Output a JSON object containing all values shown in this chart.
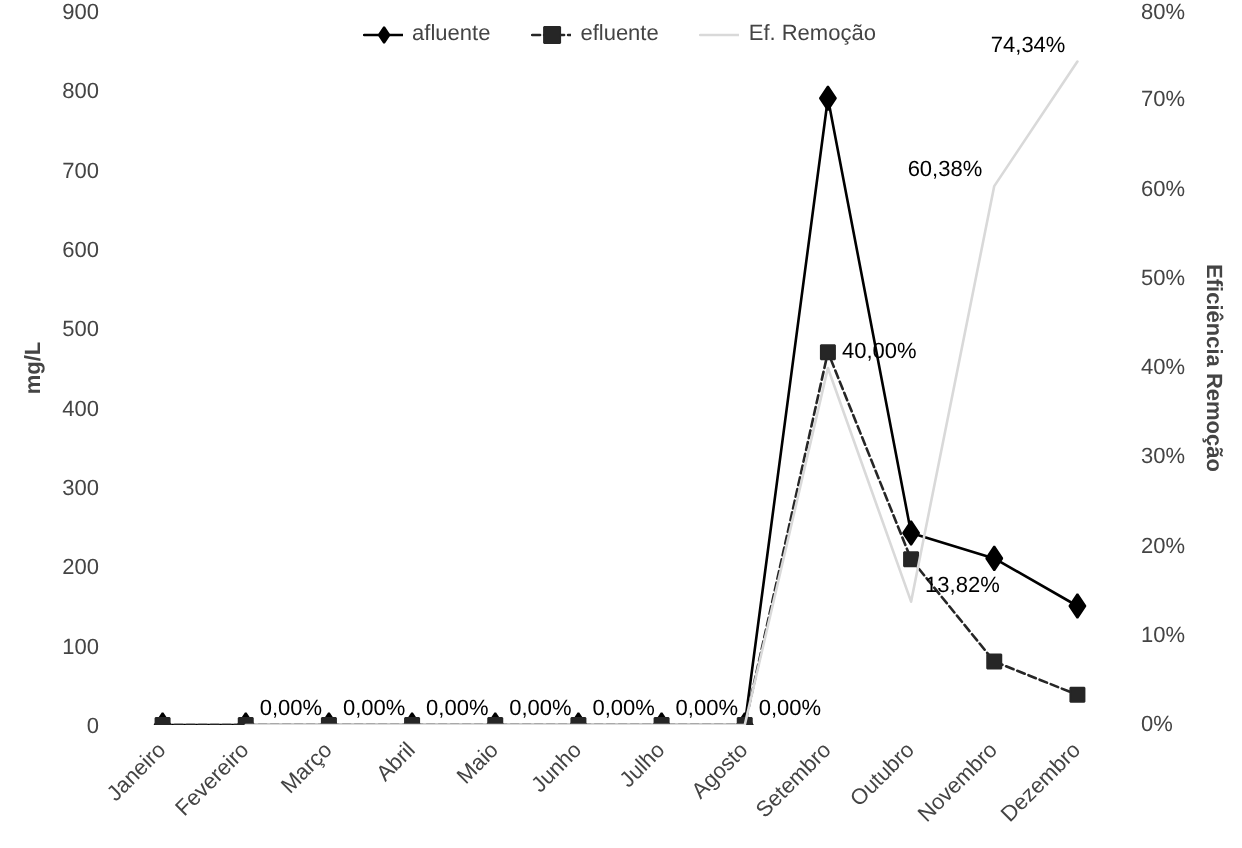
{
  "chart_data": {
    "type": "line",
    "categories": [
      "Janeiro",
      "Fevereiro",
      "Março",
      "Abril",
      "Maio",
      "Junho",
      "Julho",
      "Agosto",
      "Setembro",
      "Outubro",
      "Novembro",
      "Dezembro"
    ],
    "ylabel": "mg/L",
    "y2label": "Eficiência Remoção",
    "ylim": [
      0,
      900
    ],
    "yticks": [
      0,
      100,
      200,
      300,
      400,
      500,
      600,
      700,
      800,
      900
    ],
    "y2lim": [
      0,
      0.8
    ],
    "y2ticks": [
      {
        "value": 0,
        "label": "0%"
      },
      {
        "value": 0.1,
        "label": "10%"
      },
      {
        "value": 0.2,
        "label": "20%"
      },
      {
        "value": 0.3,
        "label": "30%"
      },
      {
        "value": 0.4,
        "label": "40%"
      },
      {
        "value": 0.5,
        "label": "50%"
      },
      {
        "value": 0.6,
        "label": "60%"
      },
      {
        "value": 0.7,
        "label": "70%"
      },
      {
        "value": 0.8,
        "label": "80%"
      }
    ],
    "grid": false,
    "legend": "top",
    "series": [
      {
        "name": "afluente",
        "color": "#000000",
        "marker": "diamond",
        "line_style": "solid",
        "values": [
          0,
          0,
          0,
          0,
          0,
          0,
          0,
          0,
          790,
          242,
          210,
          150
        ]
      },
      {
        "name": "efluente",
        "color": "#262626",
        "marker": "square",
        "line_style": "dashed",
        "values": [
          0,
          0,
          0,
          0,
          0,
          0,
          0,
          0,
          470,
          209,
          80,
          38
        ]
      },
      {
        "name": "Ef. Remoção",
        "color": "#d9d9d9",
        "marker": "none",
        "line_style": "solid",
        "axis": "y2",
        "values": [
          null,
          0,
          0,
          0,
          0,
          0,
          0,
          0,
          0.4,
          0.1382,
          0.6038,
          0.7434
        ],
        "value_labels": [
          null,
          "0,00%",
          "0,00%",
          "0,00%",
          "0,00%",
          "0,00%",
          "0,00%",
          "0,00%",
          "40,00%",
          "13,82%",
          "60,38%",
          "74,34%"
        ]
      }
    ]
  }
}
